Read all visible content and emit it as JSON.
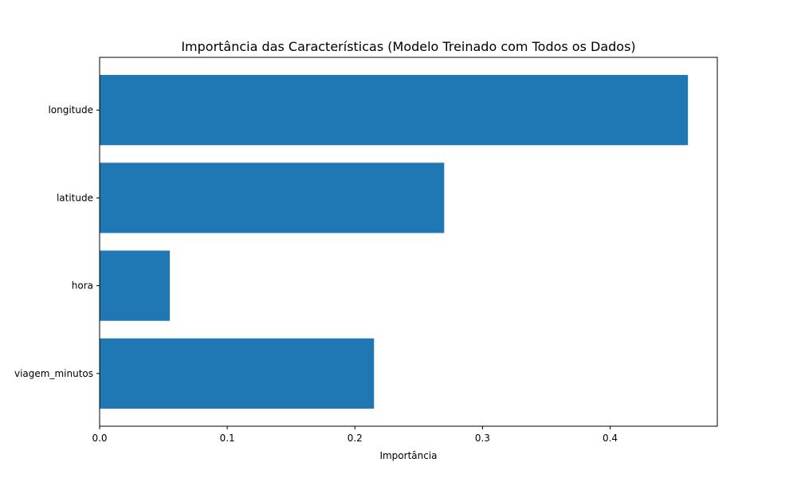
{
  "chart_data": {
    "type": "bar",
    "orientation": "horizontal",
    "title": "Importância das Características (Modelo Treinado com Todos os Dados)",
    "xlabel": "Importância",
    "ylabel": "",
    "categories": [
      "viagem_minutos",
      "hora",
      "latitude",
      "longitude"
    ],
    "values": [
      0.215,
      0.055,
      0.27,
      0.461
    ],
    "xlim": [
      0,
      0.484
    ],
    "xticks": [
      0.0,
      0.1,
      0.2,
      0.3,
      0.4
    ],
    "xtick_labels": [
      "0.0",
      "0.1",
      "0.2",
      "0.3",
      "0.4"
    ],
    "bar_color": "#1f77b4",
    "grid": false,
    "legend": "none"
  }
}
